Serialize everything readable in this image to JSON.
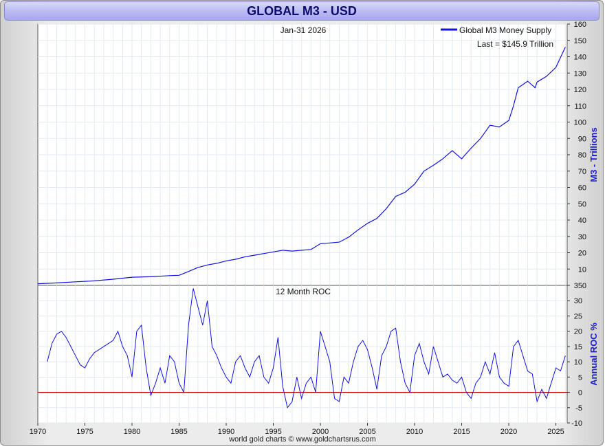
{
  "title": "GLOBAL M3 - USD",
  "footer": "world gold charts © www.goldchartsrus.com",
  "colors": {
    "series": "#1010e0",
    "zero_line": "#cc0000",
    "grid": "#e2eaf0",
    "axis_label": "#1a1ad6",
    "title_text": "#0b0b6e"
  },
  "chart_data": [
    {
      "type": "line",
      "panel": "top",
      "annotation_date": "Jan-31  2026",
      "legend": "Global M3 Money Supply",
      "last_label": "Last = $145.9 Trillion",
      "ylabel": "M3 - Trillions",
      "ylim": [
        0,
        160
      ],
      "yticks": [
        0,
        10,
        20,
        30,
        40,
        50,
        60,
        70,
        80,
        90,
        100,
        110,
        120,
        130,
        140,
        150,
        160
      ],
      "xlim": [
        1970,
        2026.2
      ],
      "grid": true,
      "legend_position": "top-right",
      "series": [
        {
          "name": "Global M3 Money Supply",
          "x": [
            1970.0,
            1972,
            1974,
            1976,
            1978,
            1980,
            1982,
            1984,
            1985,
            1986,
            1987,
            1988,
            1989,
            1990,
            1991,
            1992,
            1993,
            1994,
            1995,
            1996,
            1997,
            1998,
            1999,
            2000,
            2001,
            2002,
            2003,
            2004,
            2005,
            2006,
            2007,
            2008,
            2009,
            2010,
            2011,
            2012,
            2013,
            2014,
            2015,
            2016,
            2017,
            2018,
            2019,
            2020,
            2020.5,
            2021,
            2022,
            2022.8,
            2023,
            2024,
            2025,
            2026.0
          ],
          "y": [
            1.0,
            1.5,
            2.2,
            2.8,
            3.8,
            5.0,
            5.3,
            6.0,
            6.2,
            8.5,
            11.0,
            12.5,
            13.5,
            15.0,
            16.0,
            17.5,
            18.5,
            19.5,
            20.5,
            21.5,
            21.0,
            21.5,
            22.0,
            25.5,
            26.0,
            26.5,
            29.5,
            34.0,
            38.0,
            41.0,
            47.0,
            54.5,
            57.0,
            62.0,
            70.0,
            73.5,
            77.5,
            82.5,
            77.5,
            84.0,
            90.0,
            98.0,
            97.0,
            101.0,
            110.0,
            121.0,
            125.0,
            121.0,
            124.5,
            128.0,
            133.5,
            145.9
          ]
        }
      ]
    },
    {
      "type": "line",
      "panel": "bottom",
      "annotation": "12 Month ROC",
      "ylabel": "Annual ROC %",
      "ylim": [
        -10,
        35
      ],
      "yticks": [
        -10,
        -5,
        0,
        5,
        10,
        15,
        20,
        25,
        30,
        35
      ],
      "xticks": [
        1970,
        1975,
        1980,
        1985,
        1990,
        1995,
        2000,
        2005,
        2010,
        2015,
        2020,
        2025
      ],
      "xlim": [
        1970,
        2026.2
      ],
      "zero_line": 0,
      "grid": true,
      "series": [
        {
          "name": "12 Month ROC",
          "x": [
            1971.0,
            1971.5,
            1972.0,
            1972.5,
            1973.0,
            1973.5,
            1974.0,
            1974.5,
            1975.0,
            1975.5,
            1976.0,
            1976.5,
            1977.0,
            1977.5,
            1978.0,
            1978.5,
            1979.0,
            1979.5,
            1980.0,
            1980.5,
            1981.0,
            1981.5,
            1982.0,
            1982.5,
            1983.0,
            1983.5,
            1984.0,
            1984.5,
            1985.0,
            1985.5,
            1986.0,
            1986.5,
            1987.0,
            1987.5,
            1988.0,
            1988.5,
            1989.0,
            1989.5,
            1990.0,
            1990.5,
            1991.0,
            1991.5,
            1992.0,
            1992.5,
            1993.0,
            1993.5,
            1994.0,
            1994.5,
            1995.0,
            1995.5,
            1996.0,
            1996.5,
            1997.0,
            1997.5,
            1998.0,
            1998.5,
            1999.0,
            1999.5,
            2000.0,
            2000.5,
            2001.0,
            2001.5,
            2002.0,
            2002.5,
            2003.0,
            2003.5,
            2004.0,
            2004.5,
            2005.0,
            2005.5,
            2006.0,
            2006.5,
            2007.0,
            2007.5,
            2008.0,
            2008.5,
            2009.0,
            2009.5,
            2010.0,
            2010.5,
            2011.0,
            2011.5,
            2012.0,
            2012.5,
            2013.0,
            2013.5,
            2014.0,
            2014.5,
            2015.0,
            2015.5,
            2016.0,
            2016.5,
            2017.0,
            2017.5,
            2018.0,
            2018.5,
            2019.0,
            2019.5,
            2020.0,
            2020.5,
            2021.0,
            2021.5,
            2022.0,
            2022.5,
            2023.0,
            2023.5,
            2024.0,
            2024.5,
            2025.0,
            2025.5,
            2026.0
          ],
          "y": [
            10,
            16,
            19,
            20,
            18,
            15,
            12,
            9,
            8,
            11,
            13,
            14,
            15,
            16,
            17,
            20,
            15,
            12,
            5,
            20,
            22,
            8,
            -1,
            3,
            8,
            3,
            12,
            10,
            3,
            0,
            22,
            34,
            28,
            22,
            30,
            15,
            12,
            8,
            5,
            3,
            10,
            12,
            8,
            5,
            10,
            12,
            5,
            3,
            8,
            18,
            2,
            -5,
            -3,
            5,
            -2,
            3,
            5,
            0,
            20,
            15,
            10,
            -2,
            -3,
            5,
            3,
            10,
            15,
            17,
            14,
            8,
            1,
            12,
            15,
            20,
            21,
            10,
            3,
            0,
            12,
            16,
            10,
            6,
            15,
            10,
            5,
            6,
            4,
            3,
            5,
            0,
            -2,
            3,
            5,
            10,
            6,
            13,
            5,
            3,
            2,
            15,
            17,
            12,
            7,
            6,
            -3,
            1,
            -2,
            3,
            8,
            7,
            12
          ]
        }
      ]
    }
  ]
}
